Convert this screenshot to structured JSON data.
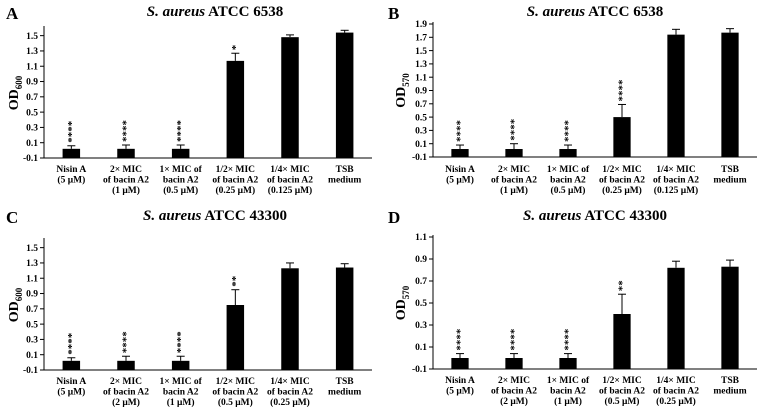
{
  "chart_data": [
    {
      "type": "bar",
      "panel": "A",
      "title": "ATCC 6538",
      "title_species": "S. aureus",
      "ylabel": "OD",
      "ylabel_sub": "600",
      "ylim": [
        -0.1,
        1.6
      ],
      "yticks": [
        -0.1,
        0.1,
        0.3,
        0.5,
        0.7,
        0.9,
        1.1,
        1.3,
        1.5
      ],
      "ytick_labels": [
        "-0.1",
        "0.1",
        "0.3",
        "0.5",
        "0.7",
        "0.9",
        "1.1",
        "1.3",
        "1.5"
      ],
      "categories": [
        [
          "Nisin A",
          "(5 μM)"
        ],
        [
          "2× MIC",
          "of bacin A2",
          "(1 μM)"
        ],
        [
          "1× MIC of",
          "bacin A2",
          "(0.5 μM)"
        ],
        [
          "1/2× MIC",
          "of bacin A2",
          "(0.25 μM)"
        ],
        [
          "1/4× MIC",
          "of bacin A2",
          "(0.125 μM)"
        ],
        [
          "TSB",
          "medium"
        ]
      ],
      "values": [
        0.02,
        0.02,
        0.02,
        1.17,
        1.48,
        1.54
      ],
      "errors": [
        0.04,
        0.05,
        0.05,
        0.1,
        0.03,
        0.03
      ],
      "significance": [
        "****",
        "****",
        "****",
        "*",
        "",
        ""
      ]
    },
    {
      "type": "bar",
      "panel": "B",
      "title": "ATCC 6538",
      "title_species": "S. aureus",
      "ylabel": "OD",
      "ylabel_sub": "570",
      "ylim": [
        -0.1,
        1.9
      ],
      "yticks": [
        -0.1,
        0.1,
        0.3,
        0.5,
        0.7,
        0.9,
        1.1,
        1.3,
        1.5,
        1.7,
        1.9
      ],
      "ytick_labels": [
        "-0.1",
        "0.1",
        "0.3",
        "0.5",
        "0.7",
        "0.9",
        "1.1",
        "1.3",
        "1.5",
        "1.7",
        "1.9"
      ],
      "categories": [
        [
          "Nisin A",
          "(5 μM)"
        ],
        [
          "2× MIC",
          "of bacin A2",
          "(1 μM)"
        ],
        [
          "1× MIC of",
          "bacin A2",
          "(0.5 μM)"
        ],
        [
          "1/2× MIC",
          "of bacin A2",
          "(0.25 μM)"
        ],
        [
          "1/4× MIC",
          "of bacin A2",
          "(0.125 μM)"
        ],
        [
          "TSB",
          "medium"
        ]
      ],
      "values": [
        0.02,
        0.02,
        0.02,
        0.5,
        1.74,
        1.77
      ],
      "errors": [
        0.06,
        0.08,
        0.06,
        0.19,
        0.08,
        0.06
      ],
      "significance": [
        "****",
        "****",
        "****",
        "****",
        "",
        ""
      ]
    },
    {
      "type": "bar",
      "panel": "C",
      "title": "ATCC 43300",
      "title_species": "S. aureus",
      "ylabel": "OD",
      "ylabel_sub": "600",
      "ylim": [
        -0.1,
        1.6
      ],
      "yticks": [
        -0.1,
        0.1,
        0.3,
        0.5,
        0.7,
        0.9,
        1.1,
        1.3,
        1.5
      ],
      "ytick_labels": [
        "-0.1",
        "0.1",
        "0.3",
        "0.5",
        "0.7",
        "0.9",
        "1.1",
        "1.3",
        "1.5"
      ],
      "categories": [
        [
          "Nisin A",
          "(5 μM)"
        ],
        [
          "2× MIC",
          "of bacin A2",
          "(2 μM)"
        ],
        [
          "1× MIC of",
          "bacin A2",
          "(1 μM)"
        ],
        [
          "1/2× MIC",
          "of bacin A2",
          "(0.5 μM)"
        ],
        [
          "1/4× MIC",
          "of bacin A2",
          "(0.25 μM)"
        ],
        [
          "TSB",
          "medium"
        ]
      ],
      "values": [
        0.02,
        0.02,
        0.02,
        0.75,
        1.23,
        1.24
      ],
      "errors": [
        0.04,
        0.06,
        0.06,
        0.2,
        0.07,
        0.05
      ],
      "significance": [
        "****",
        "****",
        "****",
        "**",
        "",
        ""
      ]
    },
    {
      "type": "bar",
      "panel": "D",
      "title": "ATCC 43300",
      "title_species": "S. aureus",
      "ylabel": "OD",
      "ylabel_sub": "570",
      "ylim": [
        -0.1,
        1.1
      ],
      "yticks": [
        -0.1,
        0.1,
        0.3,
        0.5,
        0.7,
        0.9,
        1.1
      ],
      "ytick_labels": [
        "-0.1",
        "0.1",
        "0.3",
        "0.5",
        "0.7",
        "0.9",
        "1.1"
      ],
      "categories": [
        [
          "Nisin A",
          "(5 μM)"
        ],
        [
          "2× MIC",
          "of bacin A2",
          "(2 μM)"
        ],
        [
          "1× MIC of",
          "bacin A2",
          "(1 μM)"
        ],
        [
          "1/2× MIC",
          "of bacin A2",
          "(0.5 μM)"
        ],
        [
          "1/4× MIC",
          "of bacin A2",
          "(0.25 μM)"
        ],
        [
          "TSB",
          "medium"
        ]
      ],
      "values": [
        0.0,
        0.0,
        0.0,
        0.4,
        0.82,
        0.83
      ],
      "errors": [
        0.04,
        0.04,
        0.04,
        0.18,
        0.06,
        0.06
      ],
      "significance": [
        "****",
        "****",
        "****",
        "**",
        "",
        ""
      ]
    }
  ]
}
